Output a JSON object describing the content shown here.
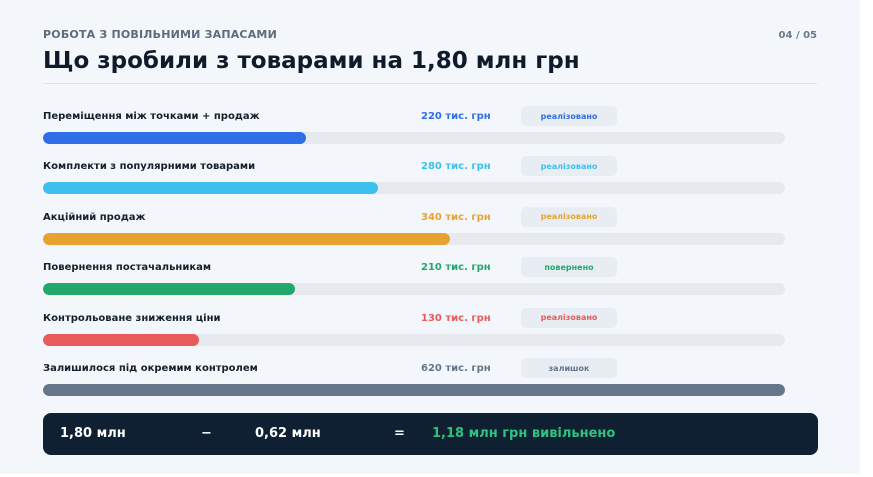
{
  "header": {
    "kicker": "РОБОТА З ПОВІЛЬНИМИ ЗАПАСАМИ",
    "page": "04 / 05",
    "title": "Що зробили з товарами на 1,80 млн грн"
  },
  "rows": [
    {
      "label": "Переміщення між точками + продаж",
      "value": "220 тис. грн",
      "badge": "реалізовано",
      "color": "#2f6ee8",
      "fill_fraction": 0.355
    },
    {
      "label": "Комплекти з популярними товарами",
      "value": "280 тис. грн",
      "badge": "реалізовано",
      "color": "#3ec0ee",
      "fill_fraction": 0.452
    },
    {
      "label": "Акційний продаж",
      "value": "340 тис. грн",
      "badge": "реалізовано",
      "color": "#e7a332",
      "fill_fraction": 0.548
    },
    {
      "label": "Повернення постачальникам",
      "value": "210 тис. грн",
      "badge": "повернено",
      "color": "#23a86b",
      "fill_fraction": 0.339
    },
    {
      "label": "Контрольоване зниження ціни",
      "value": "130 тис. грн",
      "badge": "реалізовано",
      "color": "#e85b5b",
      "fill_fraction": 0.21
    },
    {
      "label": "Залишилося під окремим контролем",
      "value": "620 тис. грн",
      "badge": "залишок",
      "color": "#65758a",
      "fill_fraction": 1.0
    }
  ],
  "summary": {
    "total": "1,80 млн",
    "minus": "−",
    "remaining": "0,62 млн",
    "equals": "=",
    "result": "1,18 млн грн вивільнено",
    "result_color": "#2ec27e"
  }
}
